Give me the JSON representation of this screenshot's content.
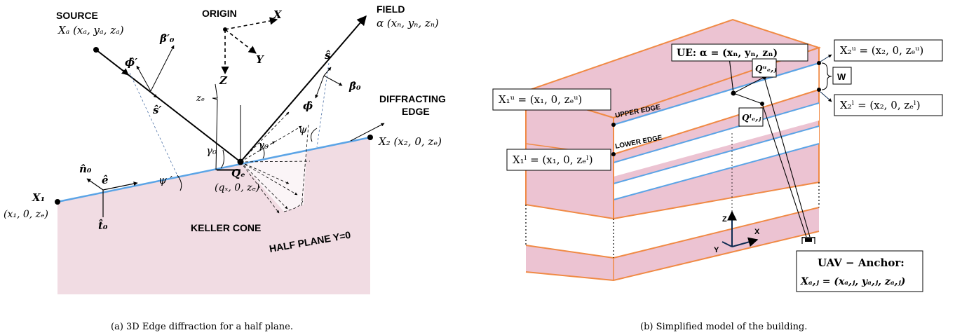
{
  "left": {
    "source_title": "SOURCE",
    "source_coord": "Xₐ (xₐ, yₐ, zₐ)",
    "origin_title": "ORIGIN",
    "axis_x": "X",
    "axis_y": "Y",
    "axis_z": "Z",
    "field_title": "FIELD",
    "field_coord": "α (xₙ, yₙ, zₙ)",
    "beta0_prime": "β̂′₀",
    "phi_prime": "ϕ̂′",
    "s_hat": "ŝ",
    "s_hat_prime": "ŝ′",
    "beta0": "β̂₀",
    "phi_hat": "ϕ̂",
    "ze_label": "zₑ",
    "gamma0_left": "γ₀",
    "gamma0_right": "γ₀",
    "psi": "ψ",
    "psi_prime": "ψ ′",
    "diffracting_edge_l1": "DIFFRACTING",
    "diffracting_edge_l2": "EDGE",
    "x2_coord": "X₂ (x₂, 0, zₑ)",
    "x1_title": "X₁",
    "x1_coord": "(x₁, 0, zₑ)",
    "n0": "n̂₀",
    "e_hat": "ê",
    "t0": "t̂₀",
    "qe": "Qₑ",
    "qe_coord": "(qₓ, 0, zₑ)",
    "keller_cone": "KELLER CONE",
    "half_plane": "HALF PLANE Y=0",
    "caption": "(a) 3D Edge diffraction for a half plane."
  },
  "right": {
    "ue_label": "UE: α = (xₙ, yₙ, zₙ)",
    "x2u": "X₂ᵘ = (x₂, 0, zₑᵘ)",
    "x2l": "X₂ˡ = (x₂, 0, zₑˡ)",
    "x1u": "X₁ᵘ = (x₁, 0, zₑᵘ)",
    "x1l": "X₁ˡ = (x₁, 0, zₑˡ)",
    "w_label": "W",
    "qu": "Qᵘₑ,ⱼ",
    "ql": "Qˡₑ,ⱼ",
    "upper_edge": "UPPER EDGE",
    "lower_edge": "LOWER EDGE",
    "axis_z": "Z",
    "axis_x": "X",
    "axis_y": "Y",
    "uav_line1": "UAV − Anchor:",
    "uav_line2": "Xₐ,ⱼ = (xₐ,ⱼ, yₐ,ⱼ, zₐ,ⱼ)",
    "caption": "(b) Simplified model of the building."
  },
  "colors": {
    "plane_fill": "#f1dce3",
    "building_fill": "#ecc3d2",
    "edge_blue": "#5ba4e6",
    "orange": "#f08a45"
  }
}
